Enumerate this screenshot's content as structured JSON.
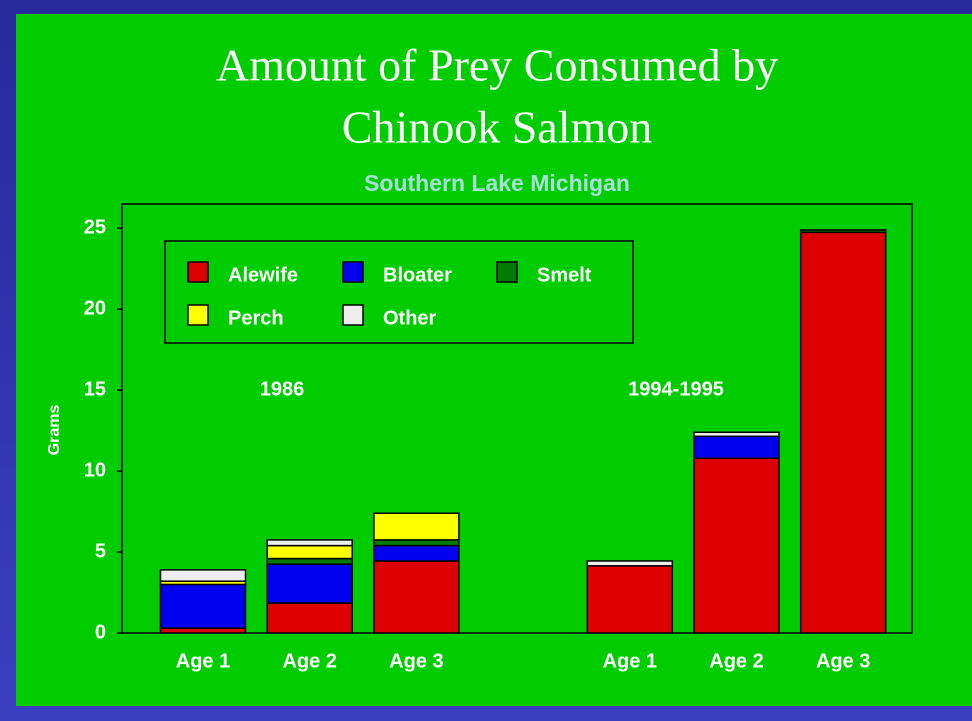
{
  "chart_data": {
    "type": "stacked_bar",
    "title": [
      "Amount of Prey Consumed by",
      "Chinook Salmon"
    ],
    "subtitle": "Southern Lake Michigan",
    "y_label": "Grams",
    "annotations": [
      "1986",
      "1994-1995"
    ],
    "categories": [
      "Age 1",
      "Age 2",
      "Age 3",
      null,
      "Age 1",
      "Age 2",
      "Age 3"
    ],
    "series": [
      {
        "name": "Alewife",
        "color": "#dd0000",
        "values": [
          0.3,
          1.85,
          4.45,
          null,
          4.15,
          10.8,
          24.75
        ]
      },
      {
        "name": "Bloater",
        "color": "#0000ee",
        "values": [
          2.7,
          2.4,
          0.95,
          null,
          0,
          1.35,
          0
        ]
      },
      {
        "name": "Smelt",
        "color": "#007a00",
        "values": [
          0,
          0.35,
          0.35,
          null,
          0,
          0,
          0.15
        ]
      },
      {
        "name": "Perch",
        "color": "#ffff00",
        "values": [
          0.2,
          0.8,
          1.65,
          null,
          0,
          0,
          0
        ]
      },
      {
        "name": "Other",
        "color": "#eeeeee",
        "values": [
          0.7,
          0.35,
          0,
          null,
          0.3,
          0.25,
          0
        ]
      }
    ],
    "ylim": [
      0,
      26.5
    ],
    "yticks": [
      0,
      5,
      10,
      15,
      20,
      25
    ],
    "grid": false
  }
}
